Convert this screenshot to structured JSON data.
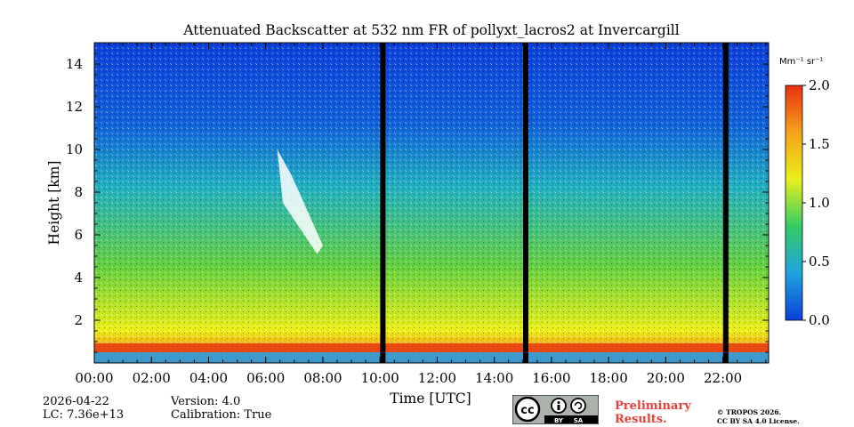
{
  "chart_data": {
    "type": "heatmap",
    "title": "Attenuated Backscatter at 532 nm FR of pollyxt_lacros2 at Invercargill",
    "xlabel": "Time [UTC]",
    "ylabel": "Height [km]",
    "x_ticks": [
      "00:00",
      "02:00",
      "04:00",
      "06:00",
      "08:00",
      "10:00",
      "12:00",
      "14:00",
      "16:00",
      "18:00",
      "20:00",
      "22:00"
    ],
    "x_tick_hours": [
      0,
      2,
      4,
      6,
      8,
      10,
      12,
      14,
      16,
      18,
      20,
      22
    ],
    "xlim_hours": [
      0,
      23.6
    ],
    "y_ticks": [
      "2",
      "4",
      "6",
      "8",
      "10",
      "12",
      "14"
    ],
    "y_tick_values": [
      2,
      4,
      6,
      8,
      10,
      12,
      14
    ],
    "ylim_km": [
      0,
      15
    ],
    "data_gaps_hours": [
      10.1,
      15.1,
      22.1
    ],
    "features": [
      {
        "name": "cirrus plume",
        "time_start_h": 6.4,
        "time_end_h": 8.0,
        "height_top_km": 10.0,
        "height_bottom_km": 5.5
      },
      {
        "name": "boundary layer",
        "height_km": 0.8
      }
    ],
    "colorbar": {
      "label": "Mm⁻¹ sr⁻¹",
      "min": 0.0,
      "max": 2.0,
      "ticks": [
        "0.0",
        "0.5",
        "1.0",
        "1.5",
        "2.0"
      ],
      "tick_values": [
        0.0,
        0.5,
        1.0,
        1.5,
        2.0
      ],
      "colormap": [
        "#0b3fd8",
        "#1fa3e0",
        "#33cc66",
        "#e8f01a",
        "#f5a21a",
        "#e83010"
      ]
    }
  },
  "footer": {
    "date": "2026-04-22",
    "lc": "LC: 7.36e+13",
    "version": "Version: 4.0",
    "calibration": "Calibration: True",
    "preliminary_line1": "Preliminary",
    "preliminary_line2": "Results.",
    "copyright_line1": "© TROPOS 2026.",
    "copyright_line2": "CC BY SA 4.0 License.",
    "cc_symbol": "cc",
    "cc_by": "BY",
    "cc_sa": "SA"
  }
}
